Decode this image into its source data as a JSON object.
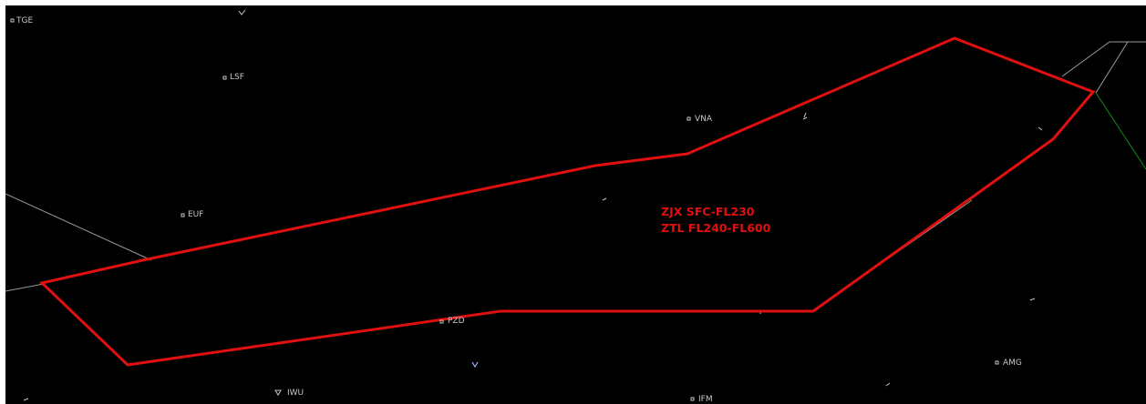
{
  "colors": {
    "background": "#000000",
    "boundary": "#e01010",
    "map_lines": "#9a9a9a",
    "green_line": "#1a8a1a",
    "fix_labels": "#c8c8c8"
  },
  "airspace": {
    "line1": "ZJX SFC-FL230",
    "line2": "ZTL FL240-FL600"
  },
  "fixes": [
    {
      "id": "TGE",
      "symbol": "square"
    },
    {
      "id": "LSF",
      "symbol": "square"
    },
    {
      "id": "VNA",
      "symbol": "square"
    },
    {
      "id": "EUF",
      "symbol": "square"
    },
    {
      "id": "PZD",
      "symbol": "square"
    },
    {
      "id": "IWU",
      "symbol": "triangle"
    },
    {
      "id": "AMG",
      "symbol": "square"
    },
    {
      "id": "IFM",
      "symbol": "square"
    }
  ]
}
